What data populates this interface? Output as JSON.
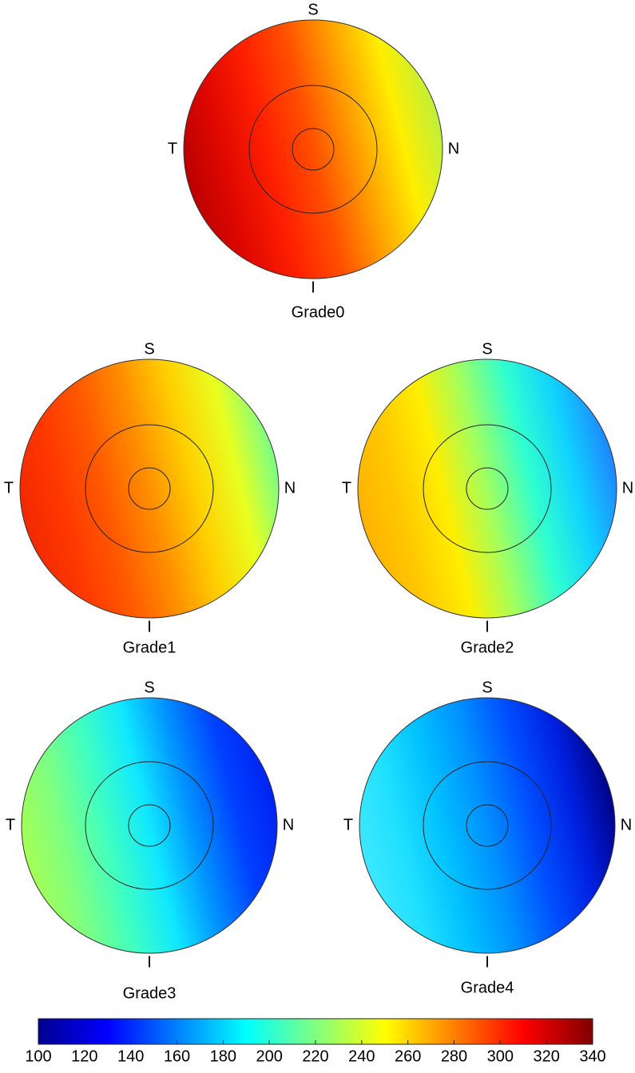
{
  "maps": [
    {
      "label": "Grade0",
      "directions": {
        "superior": "S",
        "temporal": "T",
        "nasal": "N",
        "inferior": "I"
      },
      "gradient": [
        "#b80000",
        "#e00800",
        "#ff2000",
        "#ff5000",
        "#ffa000",
        "#ffee00",
        "#b8f040"
      ]
    },
    {
      "label": "Grade1",
      "directions": {
        "superior": "S",
        "temporal": "T",
        "nasal": "N",
        "inferior": "I"
      },
      "gradient": [
        "#f02800",
        "#ff3800",
        "#ff5a00",
        "#ff9000",
        "#ffd000",
        "#e8ff20",
        "#70ff90"
      ]
    },
    {
      "label": "Grade2",
      "directions": {
        "superior": "S",
        "temporal": "T",
        "nasal": "N",
        "inferior": "I"
      },
      "gradient": [
        "#ffb000",
        "#ffc800",
        "#ffee00",
        "#a0ff60",
        "#30ffd0",
        "#10d0ff",
        "#2080ff"
      ]
    },
    {
      "label": "Grade3",
      "directions": {
        "superior": "S",
        "temporal": "T",
        "nasal": "N",
        "inferior": "I"
      },
      "gradient": [
        "#a8ff50",
        "#80ff80",
        "#40ffc0",
        "#10e8ff",
        "#0090ff",
        "#0040ff",
        "#0020f0"
      ]
    },
    {
      "label": "Grade4",
      "directions": {
        "superior": "S",
        "temporal": "T",
        "nasal": "N",
        "inferior": "I"
      },
      "gradient": [
        "#40e8ff",
        "#20e0ff",
        "#00c0ff",
        "#0090ff",
        "#0050ff",
        "#0020e0",
        "#000080"
      ]
    }
  ],
  "colorbar": {
    "lim": [
      100,
      340
    ],
    "ticks": [
      100,
      120,
      140,
      160,
      180,
      200,
      220,
      240,
      260,
      280,
      300,
      320,
      340
    ],
    "colors": [
      "#000090",
      "#0000ff",
      "#0080ff",
      "#00ffff",
      "#80ff80",
      "#ffff00",
      "#ff8000",
      "#ff0000",
      "#800000"
    ]
  }
}
